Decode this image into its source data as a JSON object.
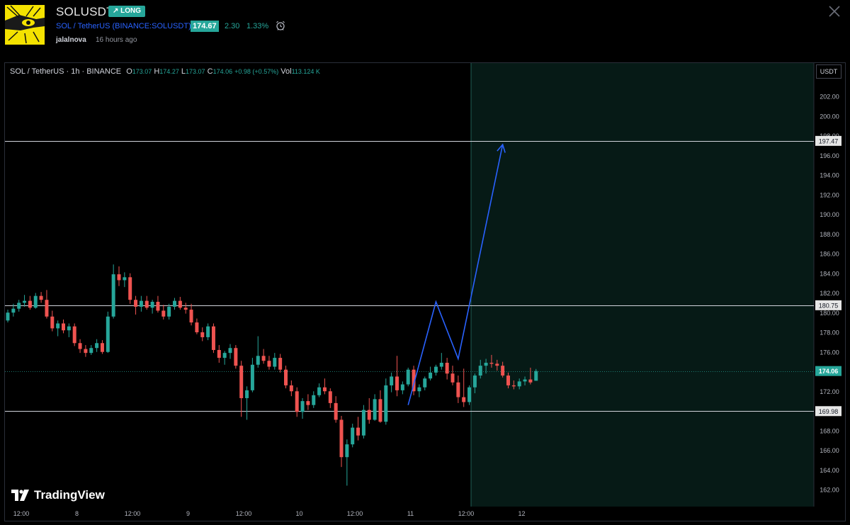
{
  "header": {
    "title": "SOLUSDT",
    "badge": "↗ LONG",
    "symbol_name": "SOL / TetherUS",
    "symbol_exchange": "(BINANCE:SOLUSDT)",
    "price": "174.67",
    "change": "2.30",
    "change_pct": "1.33%",
    "author": "jalalnova",
    "time_ago": "16 hours ago",
    "colors": {
      "up": "#26a69a",
      "down": "#ef5350",
      "link": "#2962ff"
    }
  },
  "legend": {
    "name": "SOL / TetherUS · 1h · BINANCE",
    "o_label": "O",
    "o_value": "173.07",
    "h_label": "H",
    "h_value": "174.27",
    "l_label": "L",
    "l_value": "173.07",
    "c_label": "C",
    "c_value": "174.06",
    "change": "+0.98 (+0.57%)",
    "vol_label": "Vol",
    "vol_value": "113.124 K"
  },
  "unit_button": "USDT",
  "brand": "TradingView",
  "chart_data": {
    "type": "candlestick",
    "symbol": "SOL / TetherUS",
    "interval": "1h",
    "exchange": "BINANCE",
    "ylim": [
      161,
      205
    ],
    "y_ticks": [
      202,
      200,
      198,
      196,
      194,
      192,
      190,
      188,
      186,
      184,
      182,
      180,
      178,
      176,
      174,
      172,
      170,
      168,
      166,
      164,
      162
    ],
    "x_ticks": [
      "12:00",
      "8",
      "12:00",
      "9",
      "12:00",
      "10",
      "12:00",
      "11",
      "12:00",
      "12"
    ],
    "last_price": 174.06,
    "horizontal_lines": [
      197.47,
      180.75,
      169.98
    ],
    "projection_path": [
      {
        "i": 72,
        "y": 170.6
      },
      {
        "i": 77,
        "y": 181.1
      },
      {
        "i": 81,
        "y": 175.3
      },
      {
        "i": 89,
        "y": 197.1
      }
    ],
    "candles": [
      [
        179.2,
        180.3,
        179.0,
        180.0
      ],
      [
        180.0,
        180.9,
        179.6,
        180.4
      ],
      [
        180.4,
        181.3,
        180.1,
        181.0
      ],
      [
        181.0,
        181.8,
        180.6,
        181.2
      ],
      [
        181.2,
        181.7,
        180.3,
        180.5
      ],
      [
        180.5,
        182.0,
        180.4,
        181.7
      ],
      [
        181.7,
        182.1,
        181.0,
        181.3
      ],
      [
        181.3,
        182.3,
        179.4,
        179.6
      ],
      [
        179.6,
        180.2,
        178.1,
        178.4
      ],
      [
        178.4,
        179.2,
        177.6,
        178.9
      ],
      [
        178.9,
        179.3,
        177.9,
        178.2
      ],
      [
        178.2,
        178.9,
        177.5,
        178.6
      ],
      [
        178.6,
        178.9,
        176.6,
        176.9
      ],
      [
        176.9,
        177.3,
        175.9,
        176.3
      ],
      [
        176.3,
        176.7,
        175.5,
        175.9
      ],
      [
        175.9,
        176.7,
        175.7,
        176.4
      ],
      [
        176.4,
        177.3,
        176.0,
        176.9
      ],
      [
        176.9,
        177.2,
        175.8,
        176.0
      ],
      [
        176.0,
        180.1,
        175.9,
        179.6
      ],
      [
        179.6,
        184.9,
        179.4,
        183.9
      ],
      [
        183.9,
        184.7,
        182.7,
        183.3
      ],
      [
        183.3,
        184.1,
        182.6,
        183.6
      ],
      [
        183.6,
        184.0,
        180.9,
        181.3
      ],
      [
        181.3,
        181.7,
        179.8,
        180.6
      ],
      [
        180.6,
        181.7,
        180.1,
        181.2
      ],
      [
        181.2,
        181.7,
        180.3,
        180.5
      ],
      [
        180.5,
        181.3,
        179.9,
        181.1
      ],
      [
        181.1,
        181.7,
        180.0,
        180.2
      ],
      [
        180.2,
        180.8,
        179.3,
        179.6
      ],
      [
        179.6,
        180.9,
        179.3,
        180.6
      ],
      [
        180.6,
        181.5,
        180.3,
        181.2
      ],
      [
        181.2,
        181.6,
        180.3,
        180.5
      ],
      [
        180.5,
        181.0,
        179.9,
        180.3
      ],
      [
        180.3,
        180.9,
        178.7,
        179.0
      ],
      [
        179.0,
        179.4,
        177.8,
        178.0
      ],
      [
        178.0,
        178.5,
        177.1,
        177.5
      ],
      [
        177.5,
        178.9,
        177.2,
        178.6
      ],
      [
        178.6,
        178.9,
        175.9,
        176.2
      ],
      [
        176.2,
        176.7,
        174.9,
        175.4
      ],
      [
        175.4,
        176.1,
        174.7,
        175.9
      ],
      [
        175.9,
        176.8,
        175.3,
        176.4
      ],
      [
        176.4,
        176.7,
        174.3,
        174.6
      ],
      [
        174.6,
        175.1,
        169.4,
        171.3
      ],
      [
        171.3,
        172.5,
        169.1,
        172.1
      ],
      [
        172.1,
        175.4,
        171.9,
        174.7
      ],
      [
        174.7,
        177.6,
        174.4,
        175.6
      ],
      [
        175.6,
        176.3,
        174.8,
        175.1
      ],
      [
        175.1,
        175.6,
        174.2,
        174.5
      ],
      [
        174.5,
        175.9,
        174.2,
        175.4
      ],
      [
        175.4,
        175.8,
        173.9,
        174.2
      ],
      [
        174.2,
        174.6,
        172.3,
        172.6
      ],
      [
        172.6,
        173.1,
        171.5,
        172.0
      ],
      [
        172.0,
        172.4,
        169.4,
        169.9
      ],
      [
        169.9,
        171.3,
        169.2,
        171.0
      ],
      [
        171.0,
        171.7,
        170.1,
        170.6
      ],
      [
        170.6,
        172.0,
        170.3,
        171.6
      ],
      [
        171.6,
        172.8,
        171.4,
        172.4
      ],
      [
        172.4,
        173.3,
        171.7,
        172.0
      ],
      [
        172.0,
        172.3,
        170.3,
        170.8
      ],
      [
        170.8,
        171.5,
        168.8,
        169.1
      ],
      [
        169.1,
        169.5,
        164.3,
        165.3
      ],
      [
        165.3,
        167.1,
        162.4,
        166.6
      ],
      [
        166.6,
        168.7,
        166.3,
        168.3
      ],
      [
        168.3,
        169.4,
        167.0,
        167.5
      ],
      [
        167.5,
        170.6,
        167.2,
        170.1
      ],
      [
        170.1,
        171.3,
        168.7,
        169.1
      ],
      [
        169.1,
        171.7,
        169.0,
        171.2
      ],
      [
        171.2,
        172.1,
        168.8,
        168.9
      ],
      [
        168.9,
        173.3,
        168.6,
        172.6
      ],
      [
        172.6,
        173.9,
        171.9,
        173.5
      ],
      [
        173.5,
        175.6,
        171.5,
        172.1
      ],
      [
        172.1,
        173.0,
        171.7,
        172.7
      ],
      [
        172.7,
        174.4,
        172.5,
        174.2
      ],
      [
        174.2,
        174.6,
        171.6,
        172.0
      ],
      [
        172.0,
        172.7,
        171.4,
        172.4
      ],
      [
        172.4,
        173.5,
        172.1,
        173.3
      ],
      [
        173.3,
        174.5,
        173.1,
        173.9
      ],
      [
        173.9,
        174.7,
        173.6,
        174.5
      ],
      [
        174.5,
        175.9,
        174.2,
        174.9
      ],
      [
        174.9,
        175.4,
        173.2,
        173.8
      ],
      [
        173.8,
        174.6,
        172.6,
        172.9
      ],
      [
        172.9,
        173.6,
        170.8,
        171.4
      ],
      [
        171.4,
        174.3,
        170.4,
        170.9
      ],
      [
        170.9,
        172.6,
        170.6,
        172.4
      ],
      [
        172.4,
        173.8,
        171.8,
        173.6
      ],
      [
        173.6,
        175.2,
        173.3,
        174.6
      ],
      [
        174.6,
        175.3,
        173.8,
        174.9
      ],
      [
        174.9,
        175.7,
        174.4,
        174.8
      ],
      [
        174.8,
        175.2,
        174.1,
        174.6
      ],
      [
        174.6,
        175.0,
        173.4,
        173.6
      ],
      [
        173.6,
        173.9,
        172.3,
        172.6
      ],
      [
        172.6,
        173.1,
        172.2,
        172.5
      ],
      [
        172.5,
        173.3,
        172.2,
        173.0
      ],
      [
        173.0,
        173.5,
        172.6,
        173.2
      ],
      [
        173.2,
        174.4,
        172.7,
        172.9
      ],
      [
        173.07,
        174.27,
        173.07,
        174.06
      ]
    ]
  }
}
